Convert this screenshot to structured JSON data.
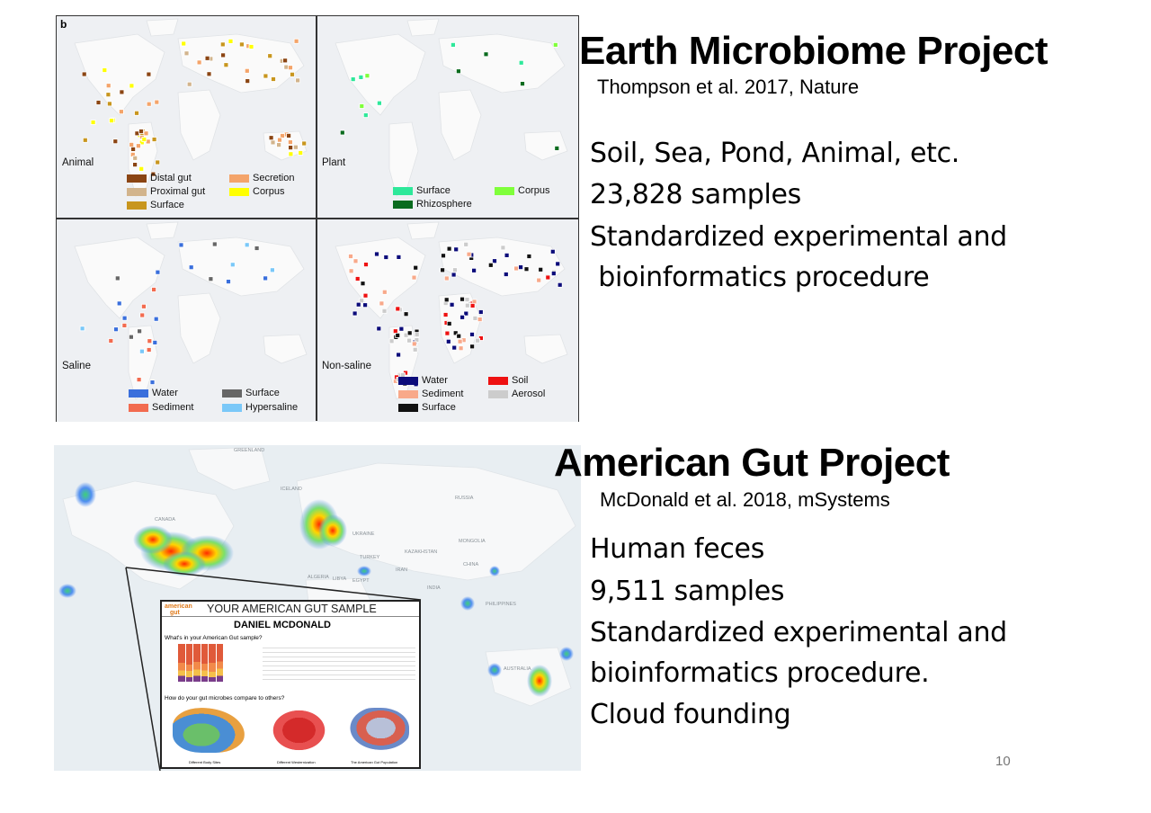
{
  "emp": {
    "title": "Earth Microbiome Project",
    "citation": "Thompson et al. 2017, Nature",
    "lines": [
      "Soil, Sea, Pond, Animal, etc.",
      "23,828 samples",
      "Standardized experimental and",
      " bioinformatics procedure"
    ],
    "figure": {
      "letter": "b",
      "panels": [
        {
          "name": "Animal",
          "legend": [
            {
              "label": "Distal gut",
              "color": "#8b4513"
            },
            {
              "label": "Secretion",
              "color": "#f4a46a"
            },
            {
              "label": "Proximal gut",
              "color": "#d2b48c"
            },
            {
              "label": "Corpus",
              "color": "#ffff00"
            },
            {
              "label": "Surface",
              "color": "#c8961e"
            }
          ]
        },
        {
          "name": "Plant",
          "legend": [
            {
              "label": "Surface",
              "color": "#2ee89a"
            },
            {
              "label": "Corpus",
              "color": "#7fff3a"
            },
            {
              "label": "Rhizosphere",
              "color": "#0a6b1e"
            }
          ]
        },
        {
          "name": "Saline",
          "legend": [
            {
              "label": "Water",
              "color": "#3a6fdc"
            },
            {
              "label": "Surface",
              "color": "#666666"
            },
            {
              "label": "Sediment",
              "color": "#f26b4f"
            },
            {
              "label": "Hypersaline",
              "color": "#7ac8f8"
            }
          ]
        },
        {
          "name": "Non-saline",
          "legend": [
            {
              "label": "Water",
              "color": "#0b0b7a"
            },
            {
              "label": "Soil",
              "color": "#ee1111"
            },
            {
              "label": "Sediment",
              "color": "#f8a98a"
            },
            {
              "label": "Aerosol",
              "color": "#cccccc"
            },
            {
              "label": "Surface",
              "color": "#111111"
            }
          ]
        }
      ]
    }
  },
  "agp": {
    "title": "American Gut Project",
    "citation": "McDonald et al. 2018, mSystems",
    "lines": [
      "Human feces",
      "9,511 samples",
      "Standardized experimental and",
      "bioinformatics procedure.",
      "Cloud founding"
    ],
    "map_labels": {
      "greenland": "GREENLAND",
      "iceland": "ICELAND",
      "russia": "RUSSIA",
      "canada": "CANADA",
      "mongolia": "MONGOLIA",
      "kazakhstan": "KAZAKHSTAN",
      "china": "CHINA",
      "turkey": "TURKEY",
      "iran": "IRAN",
      "algeria": "ALGERIA",
      "libya": "LIBYA",
      "egypt": "EGYPT",
      "india": "INDIA",
      "philippines": "PHILIPPINES",
      "australia": "AUSTRALIA",
      "ukraine": "UKRAINE"
    },
    "inset": {
      "logo_top": "american",
      "logo_bottom": "gut",
      "header": "YOUR AMERICAN GUT SAMPLE",
      "name": "DANIEL MCDONALD",
      "q1": "What's in your American Gut sample?",
      "q2": "How do your gut microbes compare to others?",
      "cap1": "Different Body Sites",
      "cap2": "Different Westernization",
      "cap3": "The American Gut Population"
    }
  },
  "page_number": "10"
}
